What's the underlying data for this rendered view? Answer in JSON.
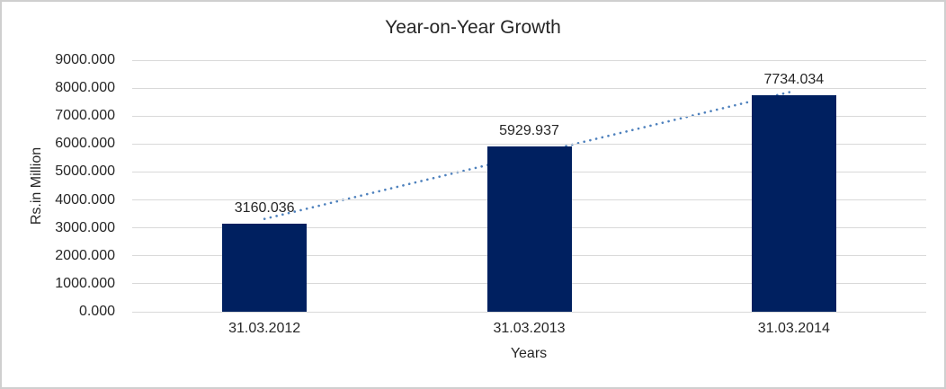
{
  "chart_data": {
    "type": "bar",
    "title": "Year-on-Year Growth",
    "xlabel": "Years",
    "ylabel": "Rs.in Million",
    "categories": [
      "31.03.2012",
      "31.03.2013",
      "31.03.2014"
    ],
    "values": [
      3160.036,
      5929.937,
      7734.034
    ],
    "value_labels": [
      "3160.036",
      "5929.937",
      "7734.034"
    ],
    "ylim": [
      0,
      9000
    ],
    "ytick_step": 1000,
    "ytick_labels": [
      "0.000",
      "1000.000",
      "2000.000",
      "3000.000",
      "4000.000",
      "5000.000",
      "6000.000",
      "7000.000",
      "8000.000",
      "9000.000"
    ],
    "grid": true,
    "legend": "none",
    "trendline": {
      "type": "linear",
      "style": "dotted",
      "fitted_endpoints": [
        3321.003,
        7895.001
      ]
    },
    "colors": {
      "bar": "#002060",
      "trendline": "#4e81bd",
      "gridline": "#d9d9d9",
      "text": "#262626",
      "background": "#ffffff",
      "border": "#cfcfcf"
    }
  }
}
